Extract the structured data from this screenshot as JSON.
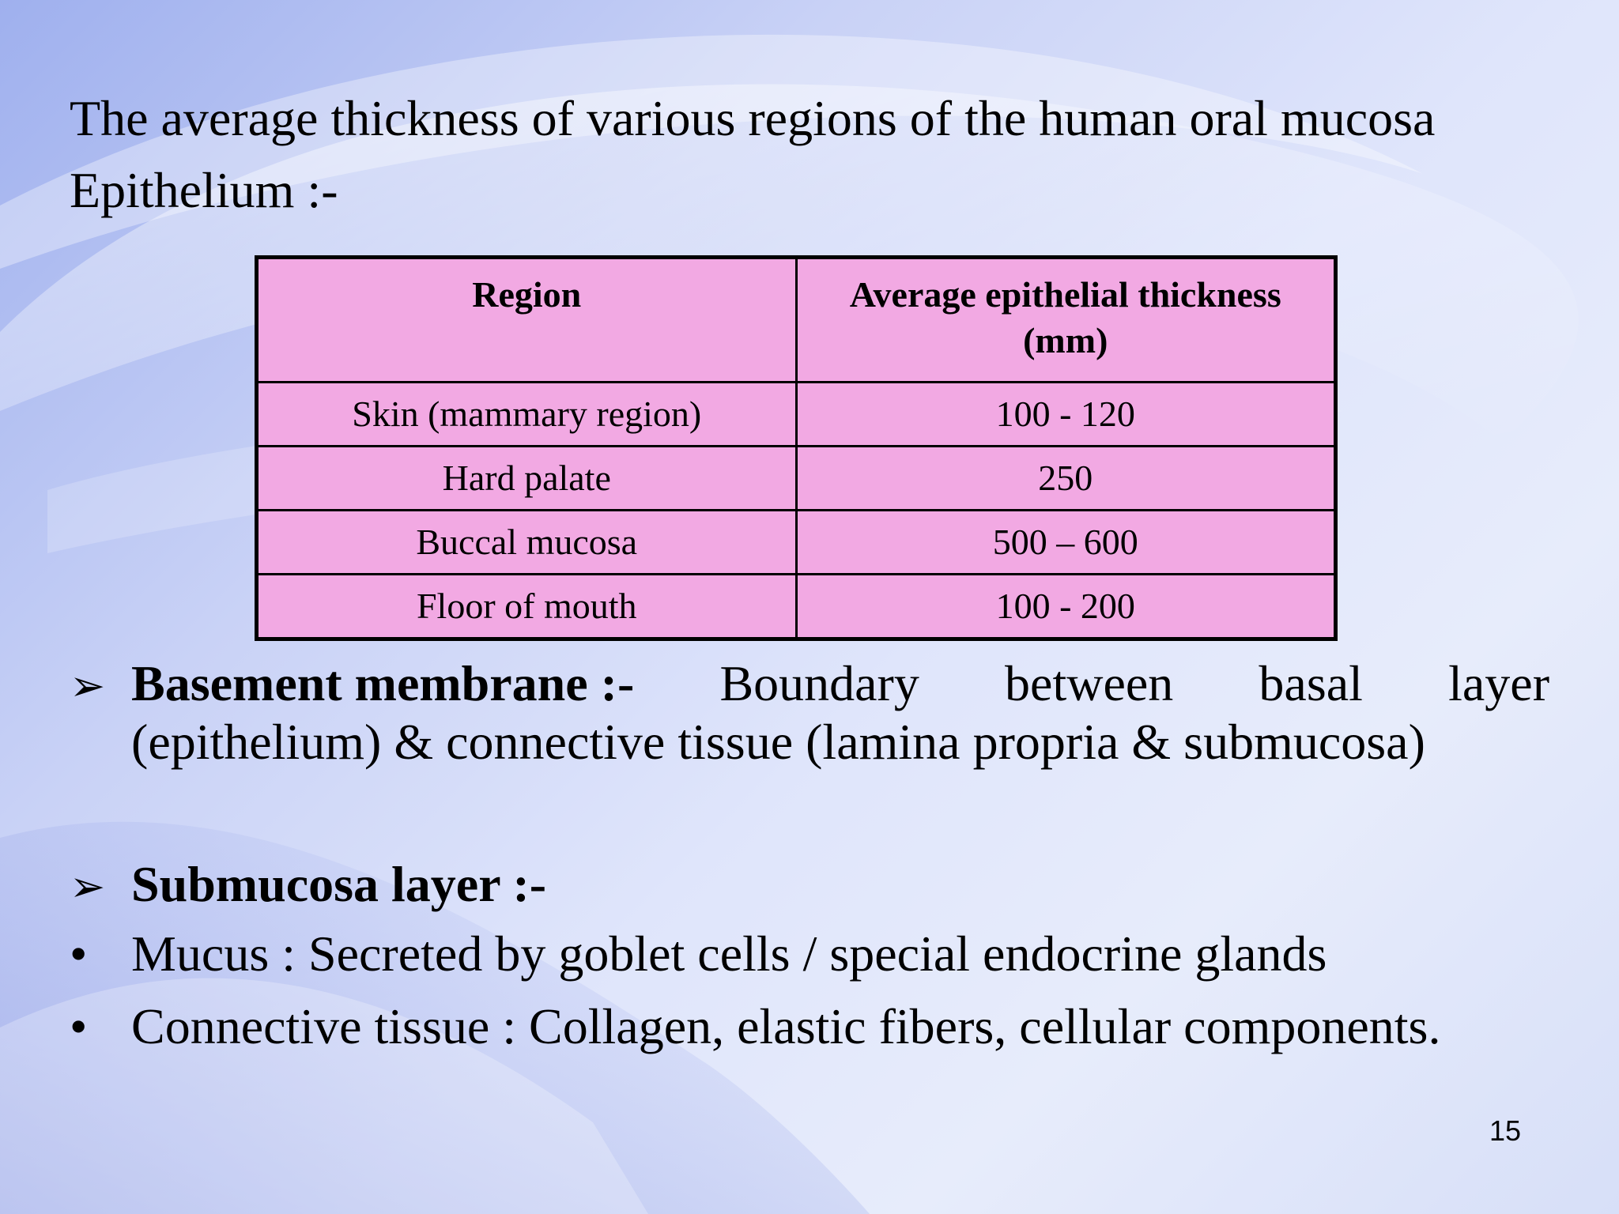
{
  "colors": {
    "table_fill": "#f2a9e3",
    "table_border": "#000000",
    "text": "#000000",
    "background_light": "#e7ecfb",
    "background_swirl": "#9fb0ee"
  },
  "title": {
    "line1": "The average thickness of various regions of the human oral mucosa",
    "line2": "Epithelium :-"
  },
  "table": {
    "headers": [
      "Region",
      "Average epithelial thickness (mm)"
    ],
    "rows": [
      [
        "Skin (mammary region)",
        "100 - 120"
      ],
      [
        "Hard palate",
        "250"
      ],
      [
        "Buccal mucosa",
        "500 – 600"
      ],
      [
        "Floor of mouth",
        "100 - 200"
      ]
    ]
  },
  "bullets": {
    "arrow_glyph": "➢",
    "dot_glyph": "•",
    "basement": {
      "term": "Basement membrane :-",
      "row1_words": [
        "Boundary",
        "between",
        "basal",
        "layer"
      ],
      "row2": "(epithelium) & connective tissue (lamina propria & submucosa)"
    },
    "submucosa": {
      "term": "Submucosa layer :-"
    },
    "items": [
      "Mucus : Secreted by goblet cells / special endocrine glands",
      "Connective tissue : Collagen, elastic fibers, cellular components."
    ]
  },
  "slide_number": "15"
}
